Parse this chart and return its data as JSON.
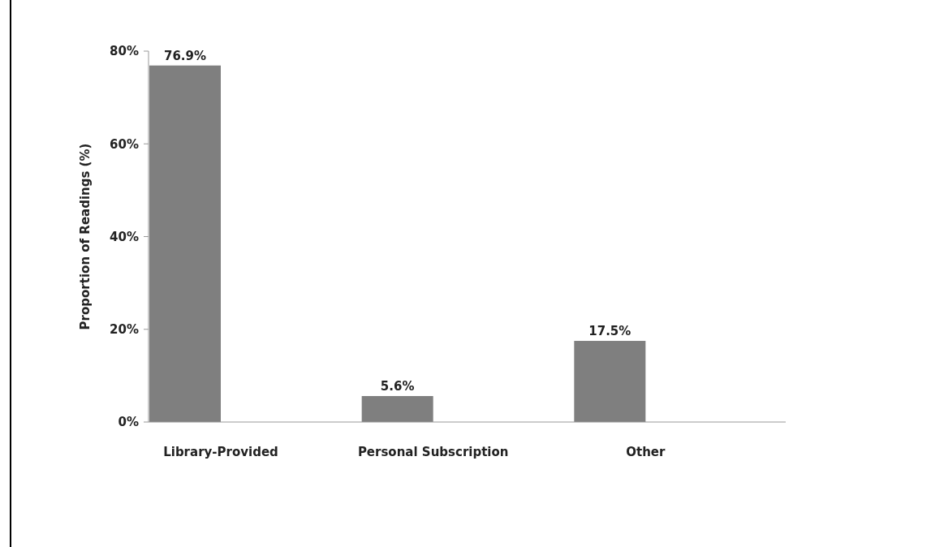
{
  "chart_data": {
    "type": "bar",
    "ylabel": "Proportion of Readings (%)",
    "categories": [
      "Library-Provided",
      "Personal Subscription",
      "Other"
    ],
    "values": [
      76.9,
      5.6,
      17.5
    ],
    "color": "#7f7f7f",
    "value_labels": [
      "76.9%",
      "5.6%",
      "17.5%"
    ],
    "ylim": [
      0,
      80
    ],
    "yticks": [
      {
        "value": 0,
        "label": "0%"
      },
      {
        "value": 20,
        "label": "20%"
      },
      {
        "value": 40,
        "label": "40%"
      },
      {
        "value": 60,
        "label": "60%"
      },
      {
        "value": 80,
        "label": "80%"
      }
    ],
    "grid": false
  }
}
